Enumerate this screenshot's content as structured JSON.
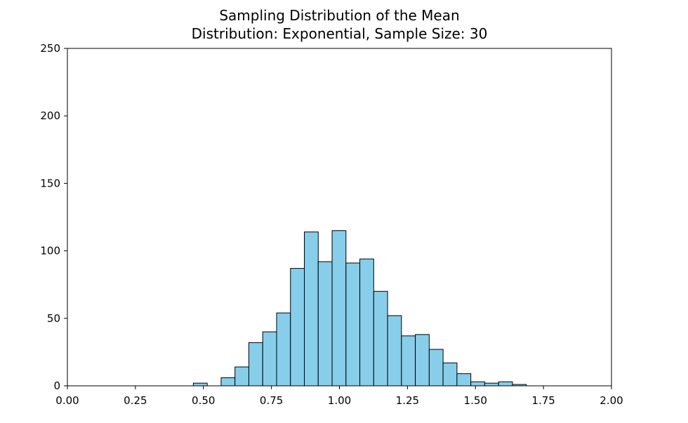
{
  "chart_data": {
    "type": "bar",
    "title": "Sampling Distribution of the Mean",
    "subtitle": "Distribution: Exponential, Sample Size: 30",
    "xlabel": "",
    "ylabel": "",
    "xlim": [
      0.0,
      2.0
    ],
    "ylim": [
      0,
      250
    ],
    "xticks": [
      "0.00",
      "0.25",
      "0.50",
      "0.75",
      "1.00",
      "1.25",
      "1.50",
      "1.75",
      "2.00"
    ],
    "yticks": [
      "0",
      "50",
      "100",
      "150",
      "200",
      "250"
    ],
    "grid": false,
    "bin_edges": [
      0.463,
      0.514,
      0.565,
      0.616,
      0.667,
      0.718,
      0.769,
      0.82,
      0.871,
      0.922,
      0.973,
      1.024,
      1.075,
      1.126,
      1.177,
      1.228,
      1.279,
      1.33,
      1.381,
      1.432,
      1.483,
      1.534,
      1.585,
      1.636,
      1.687
    ],
    "values": [
      2,
      0,
      6,
      14,
      32,
      40,
      54,
      87,
      114,
      92,
      115,
      91,
      94,
      70,
      52,
      37,
      38,
      27,
      17,
      9,
      3,
      2,
      3,
      1
    ],
    "colors": {
      "bar_fill": "#87ceeb",
      "bar_edge": "#000000",
      "axis": "#000000"
    }
  }
}
